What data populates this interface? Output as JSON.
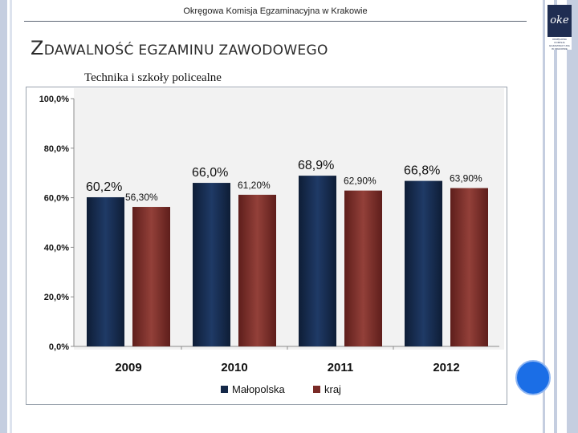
{
  "header": {
    "organization": "Okręgowa Komisja Egzaminacyjna w Krakowie",
    "title_first_letter": "Z",
    "title_rest": "DAWALNOŚĆ EGZAMINU ZAWODOWEGO",
    "subtitle": "Technika i szkoły policealne"
  },
  "logo": {
    "symbol": "oke",
    "lines": [
      "OKRĘGOWA",
      "KOMISJA",
      "EGZAMINACYJNA",
      "W KRAKOWIE"
    ]
  },
  "colors": {
    "series_malopolska": "#142848",
    "series_kraj": "#7a2a26",
    "accent_circle": "#1b6ee6"
  },
  "chart_data": {
    "type": "bar",
    "title": "Technika i szkoły policealne",
    "categories": [
      "2009",
      "2010",
      "2011",
      "2012"
    ],
    "series": [
      {
        "name": "Małopolska",
        "values": [
          60.2,
          66.0,
          68.9,
          66.8
        ],
        "labels": [
          "60,2%",
          "66,0%",
          "68,9%",
          "66,8%"
        ]
      },
      {
        "name": "kraj",
        "values": [
          56.3,
          61.2,
          62.9,
          63.9
        ],
        "labels": [
          "56,30%",
          "61,20%",
          "62,90%",
          "63,90%"
        ]
      }
    ],
    "ylim": [
      0,
      100
    ],
    "yticks": [
      0,
      20,
      40,
      60,
      80,
      100
    ],
    "ytick_labels": [
      "0,0%",
      "20,0%",
      "40,0%",
      "60,0%",
      "80,0%",
      "100,0%"
    ],
    "grid": false,
    "legend_position": "bottom"
  }
}
